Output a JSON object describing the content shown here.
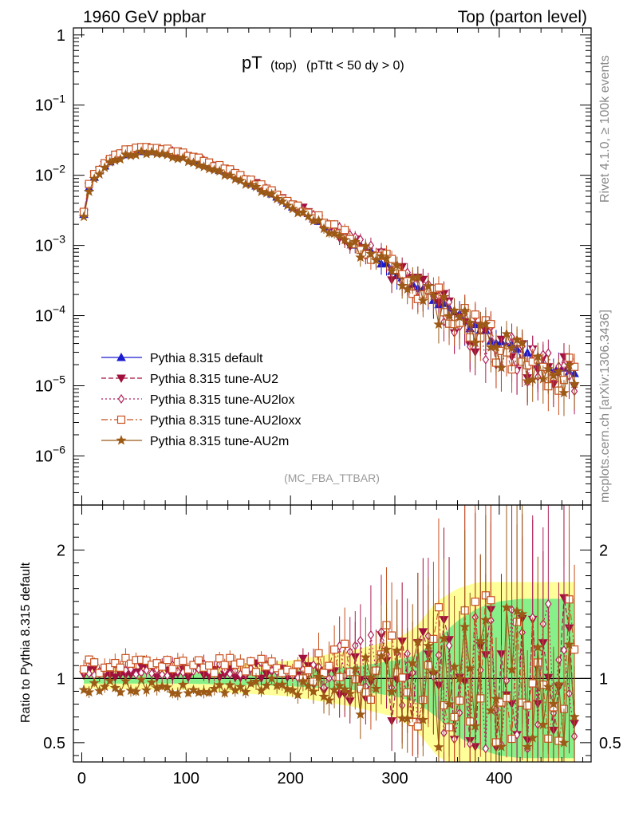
{
  "header": {
    "left": "1960 GeV ppbar",
    "right": "Top (parton level)"
  },
  "side_labels": {
    "rivet": "Rivet 4.1.0, ≥ 100k events",
    "mcplots": "mcplots.cern.ch [arXiv:1306.3436]"
  },
  "chart_data": {
    "type": "line",
    "title": "pT",
    "title_sub": "(top)",
    "title_cut": "(pTtt < 50 dy > 0)",
    "analysis": "(MC_FBA_TTBAR)",
    "xlabel": "",
    "ylabel_main": "",
    "ylabel_ratio": "Ratio to Pythia 8.315 default",
    "xlim": [
      -8,
      488
    ],
    "ylim_main_log10": [
      -6.7,
      0.1
    ],
    "ylim_ratio": [
      0.35,
      2.35
    ],
    "x_ticks": [
      0,
      100,
      200,
      300,
      400
    ],
    "main_y_ticks": [
      {
        "value": 1,
        "base": "1",
        "exp": ""
      },
      {
        "value": 0.1,
        "base": "10",
        "exp": "−1"
      },
      {
        "value": 0.01,
        "base": "10",
        "exp": "−2"
      },
      {
        "value": 0.001,
        "base": "10",
        "exp": "−3"
      },
      {
        "value": 0.0001,
        "base": "10",
        "exp": "−4"
      },
      {
        "value": 1e-05,
        "base": "10",
        "exp": "−5"
      },
      {
        "value": 1e-06,
        "base": "10",
        "exp": "−6"
      }
    ],
    "ratio_y_ticks": [
      {
        "value": 0.5,
        "label": "0.5"
      },
      {
        "value": 1,
        "label": "1"
      },
      {
        "value": 2,
        "label": "2"
      }
    ],
    "reference_shape": {
      "x": [
        0,
        5,
        10,
        20,
        30,
        40,
        50,
        60,
        70,
        80,
        90,
        100,
        120,
        140,
        160,
        180,
        200,
        220,
        240,
        260,
        280,
        300,
        320,
        340,
        360,
        380,
        400,
        420,
        440,
        460,
        475
      ],
      "y": [
        0.0018,
        0.0055,
        0.0085,
        0.013,
        0.017,
        0.0198,
        0.0215,
        0.0222,
        0.022,
        0.0212,
        0.0198,
        0.018,
        0.0142,
        0.0108,
        0.0079,
        0.0056,
        0.0038,
        0.0026,
        0.0017,
        0.0011,
        0.0007,
        0.00045,
        0.00029,
        0.00017,
        0.0001,
        6e-05,
        4e-05,
        2.8e-05,
        2e-05,
        1.6e-05,
        1.5e-05
      ]
    },
    "band_inner_halfwidth": {
      "x": [
        0,
        100,
        200,
        260,
        300,
        320,
        340,
        360,
        380,
        400,
        420,
        440,
        460,
        470
      ],
      "y": [
        0.04,
        0.04,
        0.06,
        0.09,
        0.14,
        0.18,
        0.3,
        0.45,
        0.55,
        0.6,
        0.62,
        0.62,
        0.62,
        0.62
      ]
    },
    "band_outer_halfwidth": {
      "x": [
        0,
        100,
        200,
        260,
        300,
        320,
        340,
        360,
        380,
        400,
        420,
        440,
        460,
        470
      ],
      "y": [
        0.08,
        0.09,
        0.14,
        0.22,
        0.3,
        0.4,
        0.6,
        0.7,
        0.75,
        0.75,
        0.75,
        0.75,
        0.75,
        0.75
      ]
    },
    "series": [
      {
        "name": "Pythia 8.315 default",
        "color": "#1b1bd0",
        "marker": "triangle-up",
        "dash": "",
        "seed": 11,
        "bias": 0.0,
        "noise": 0.02,
        "ratio_offset": 0.0
      },
      {
        "name": "Pythia 8.315 tune-AU2",
        "color": "#a0103c",
        "marker": "triangle-down",
        "dash": "6,3",
        "seed": 23,
        "bias": 0.06,
        "noise": 0.06,
        "ratio_offset": 0.06
      },
      {
        "name": "Pythia 8.315 tune-AU2lox",
        "color": "#b0205a",
        "marker": "diamond-open",
        "dash": "2,3",
        "seed": 37,
        "bias": 0.08,
        "noise": 0.06,
        "ratio_offset": 0.08
      },
      {
        "name": "Pythia 8.315 tune-AU2loxx",
        "color": "#c8501e",
        "marker": "square-open",
        "dash": "8,3,2,3",
        "seed": 41,
        "bias": 0.1,
        "noise": 0.06,
        "ratio_offset": 0.1
      },
      {
        "name": "Pythia 8.315 tune-AU2m",
        "color": "#9c5a16",
        "marker": "star",
        "dash": "",
        "seed": 53,
        "bias": -0.06,
        "noise": 0.06,
        "ratio_offset": -0.06
      }
    ]
  }
}
